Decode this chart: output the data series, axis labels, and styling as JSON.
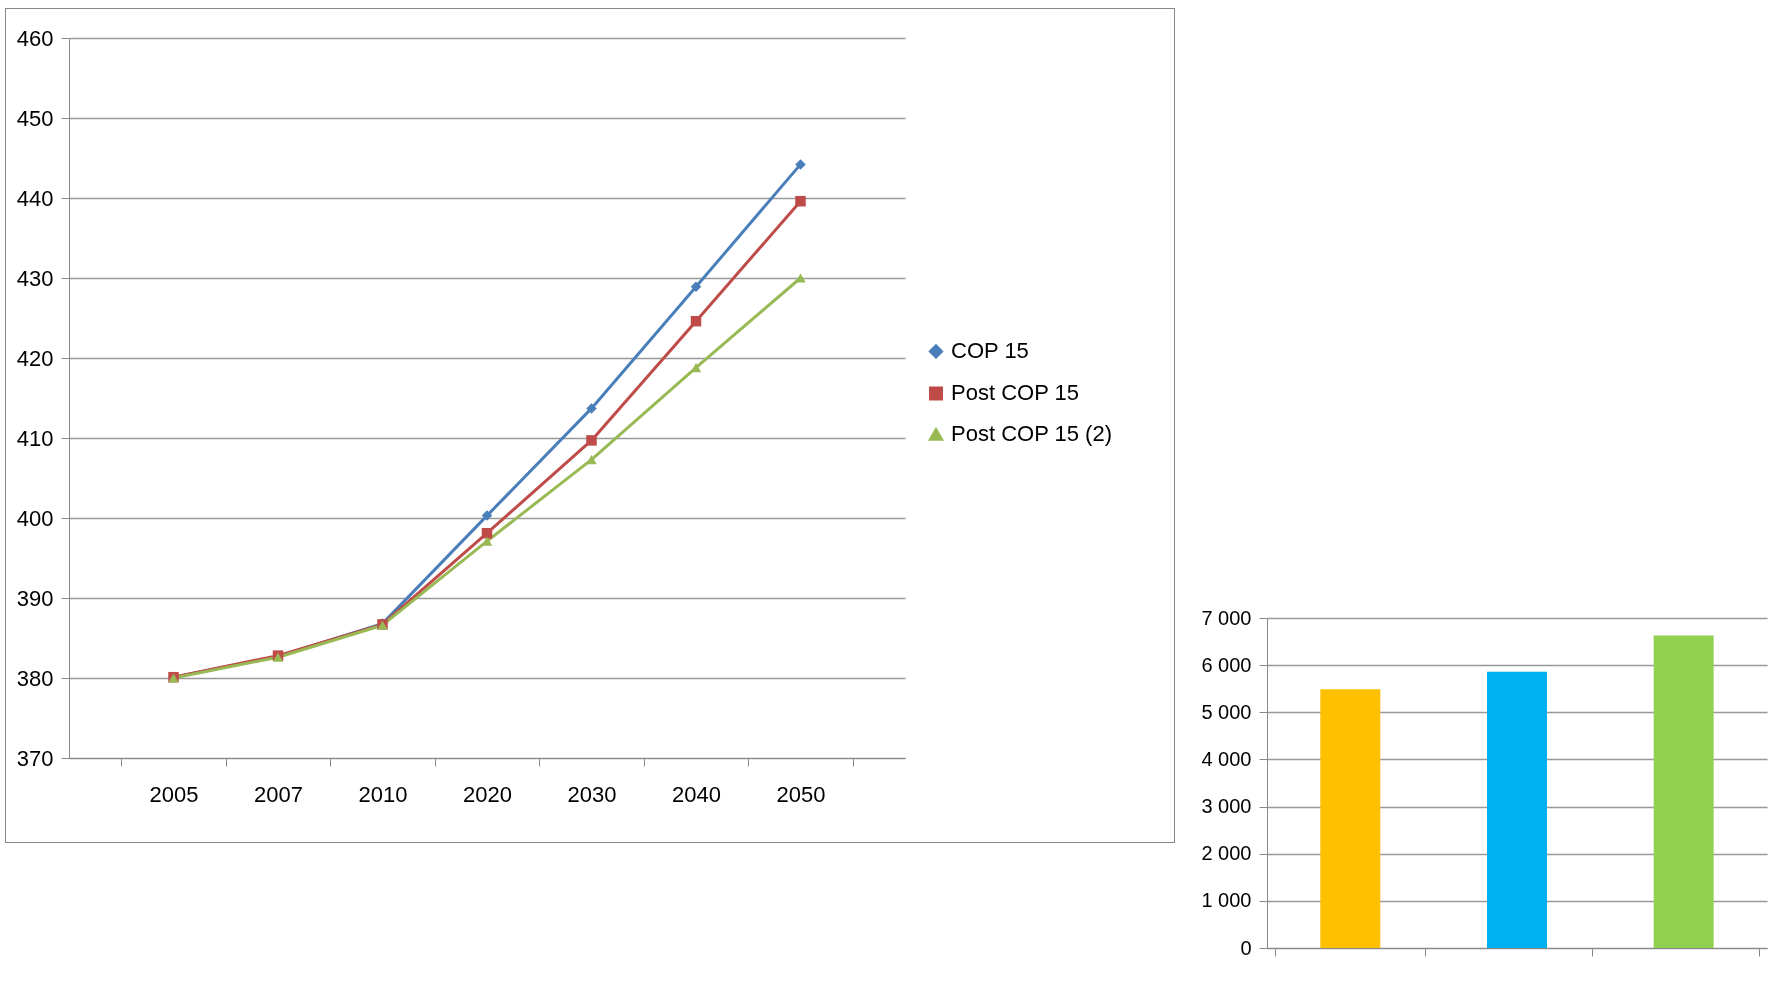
{
  "chart_data": [
    {
      "type": "line",
      "categories": [
        "2005",
        "2007",
        "2010",
        "2020",
        "2030",
        "2040",
        "2050"
      ],
      "series": [
        {
          "name": "COP 15",
          "color": "#4a7ebb",
          "marker": "diamond",
          "values": [
            380.1,
            382.7,
            386.8,
            400.3,
            413.7,
            428.9,
            444.2
          ]
        },
        {
          "name": "Post COP 15",
          "color": "#be4b48",
          "marker": "square",
          "values": [
            380.1,
            382.8,
            386.7,
            398.1,
            409.7,
            424.6,
            439.6
          ]
        },
        {
          "name": "Post COP 15 (2)",
          "color": "#98b954",
          "marker": "triangle",
          "values": [
            380.0,
            382.6,
            386.6,
            397.1,
            407.3,
            418.8,
            430.0
          ]
        }
      ],
      "ylim": [
        370,
        460
      ],
      "yticks": [
        370,
        380,
        390,
        400,
        410,
        420,
        430,
        440,
        450,
        460
      ],
      "grid": "y",
      "legend": "right",
      "line_style": "solid"
    },
    {
      "type": "bar",
      "categories": [
        null,
        null,
        null
      ],
      "values": [
        5490,
        5860,
        6630
      ],
      "colors": [
        "#ffc000",
        "#00b0f0",
        "#92d050"
      ],
      "ylim": [
        0,
        7000
      ],
      "yticks": [
        {
          "value": 0,
          "label": "0"
        },
        {
          "value": 1000,
          "label": "1 000"
        },
        {
          "value": 2000,
          "label": "2 000"
        },
        {
          "value": 3000,
          "label": "3 000"
        },
        {
          "value": 4000,
          "label": "4 000"
        },
        {
          "value": 5000,
          "label": "5 000"
        },
        {
          "value": 6000,
          "label": "6 000"
        },
        {
          "value": 7000,
          "label": "7 000"
        }
      ],
      "grid": "y",
      "tick_labels": "y"
    }
  ]
}
